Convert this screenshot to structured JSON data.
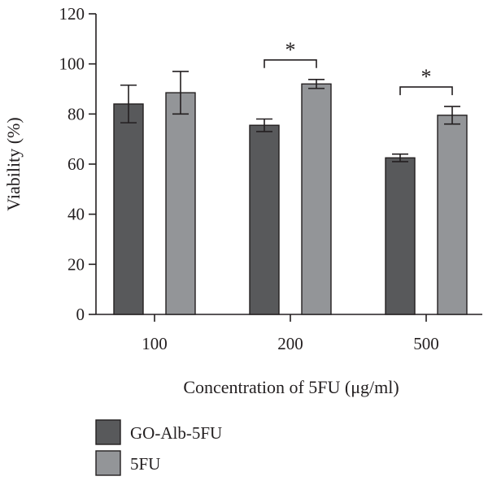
{
  "chart_data": {
    "type": "bar",
    "xlabel": "Concentration of 5FU (μg/ml)",
    "ylabel": "Viability (%)",
    "ylim": [
      0,
      120
    ],
    "yticks": [
      0,
      20,
      40,
      60,
      80,
      100,
      120
    ],
    "categories": [
      "100",
      "200",
      "500"
    ],
    "series": [
      {
        "name": "GO-Alb-5FU",
        "color": "#58595b",
        "values": [
          84,
          75.5,
          62.5
        ],
        "errors": [
          7.5,
          2.5,
          1.5
        ]
      },
      {
        "name": "5FU",
        "color": "#939598",
        "values": [
          88.5,
          92,
          79.5
        ],
        "errors": [
          8.5,
          1.8,
          3.5
        ]
      }
    ],
    "significance": [
      {
        "category": 1,
        "label": "*"
      },
      {
        "category": 2,
        "label": "*"
      }
    ],
    "legend_position": "bottom-left"
  }
}
